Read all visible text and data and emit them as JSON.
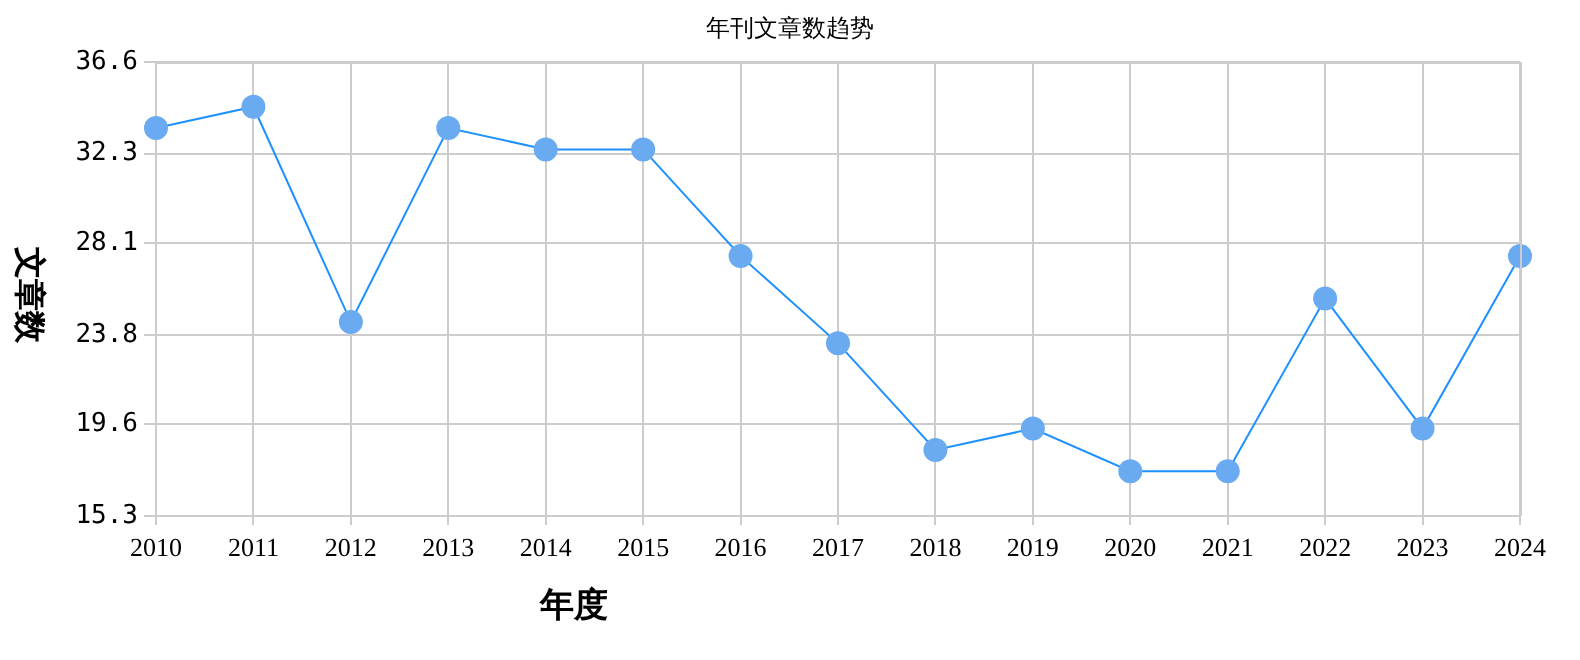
{
  "chart_data": {
    "type": "line",
    "title": "年刊文章数趋势",
    "xlabel": "年度",
    "ylabel": "文章数",
    "categories": [
      "2010",
      "2011",
      "2012",
      "2013",
      "2014",
      "2015",
      "2016",
      "2017",
      "2018",
      "2019",
      "2020",
      "2021",
      "2022",
      "2023",
      "2024"
    ],
    "series": [
      {
        "color": "#1e90ff",
        "values": [
          33.5,
          34.5,
          24.4,
          33.5,
          32.5,
          32.5,
          27.5,
          23.4,
          18.4,
          19.4,
          17.4,
          17.4,
          25.5,
          19.4,
          27.5
        ]
      }
    ],
    "ylim": [
      15.3,
      36.6
    ],
    "yticks": [
      15.3,
      19.6,
      23.8,
      28.1,
      32.3,
      36.6
    ],
    "grid": true,
    "legend": false,
    "marker": "circle",
    "line_style": "solid"
  }
}
